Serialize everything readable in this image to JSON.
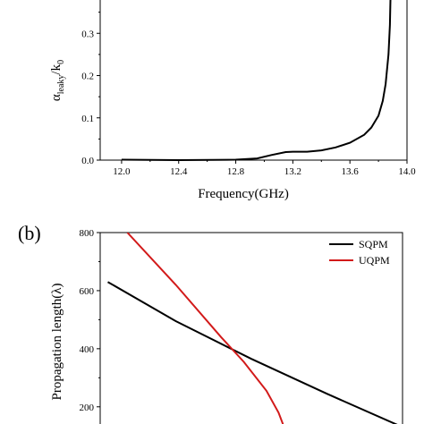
{
  "chart_data": [
    {
      "type": "line",
      "panel_label": "",
      "xlabel": "Frequency(GHz)",
      "ylabel_main": "α",
      "ylabel_sub": "leaky",
      "ylabel_rest": "/k",
      "ylabel_sub2": "0",
      "xlim": [
        11.85,
        14.0
      ],
      "ylim": [
        0.0,
        0.4
      ],
      "x_ticks": [
        "12.0",
        "12.4",
        "12.8",
        "13.2",
        "13.6",
        "14.0"
      ],
      "y_ticks": [
        "0.0",
        "0.1",
        "0.2",
        "0.3"
      ],
      "grid": false,
      "series": [
        {
          "color": "#000000",
          "x": [
            12.0,
            12.4,
            12.8,
            12.95,
            13.05,
            13.15,
            13.2,
            13.3,
            13.4,
            13.5,
            13.6,
            13.7,
            13.75,
            13.8,
            13.83,
            13.85,
            13.87,
            13.88,
            13.885
          ],
          "y": [
            0.001,
            0.0,
            0.001,
            0.004,
            0.012,
            0.019,
            0.02,
            0.02,
            0.023,
            0.03,
            0.041,
            0.06,
            0.077,
            0.105,
            0.14,
            0.18,
            0.25,
            0.32,
            0.4
          ]
        }
      ]
    },
    {
      "type": "line",
      "panel_label": "(b)",
      "xlabel": "",
      "ylabel": "Propagation length(λ)",
      "xlim": [
        12.0,
        14.0
      ],
      "ylim": [
        110,
        800
      ],
      "y_ticks": [
        "200",
        "400",
        "600",
        "800"
      ],
      "grid": false,
      "legend_position": "top-right",
      "series": [
        {
          "name": "SQPM",
          "color": "#000000",
          "x": [
            12.05,
            12.5,
            13.0,
            13.5,
            14.0
          ],
          "y": [
            630,
            495,
            365,
            245,
            130
          ]
        },
        {
          "name": "UQPM",
          "color": "#d21a1a",
          "x": [
            12.18,
            12.5,
            12.8,
            12.95,
            13.1,
            13.18,
            13.22
          ],
          "y": [
            800,
            620,
            440,
            355,
            255,
            180,
            125
          ]
        }
      ]
    }
  ]
}
